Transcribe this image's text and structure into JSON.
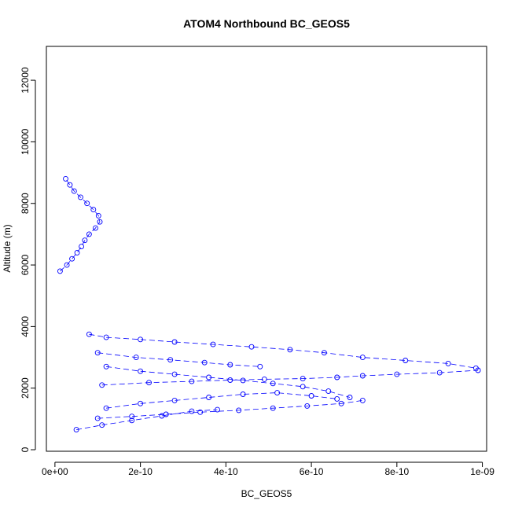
{
  "chart_data": {
    "type": "scatter",
    "title": "ATOM4 Northbound BC_GEOS5",
    "xlabel": "BC_GEOS5",
    "ylabel": "Altitude (m)",
    "xlim": [
      -2e-11,
      1.01e-09
    ],
    "ylim": [
      -50,
      13100
    ],
    "xticks": [
      0,
      2e-10,
      4e-10,
      6e-10,
      8e-10,
      1e-09
    ],
    "xtick_labels": [
      "0e+00",
      "2e-10",
      "4e-10",
      "6e-10",
      "8e-10",
      "1e-09"
    ],
    "yticks": [
      0,
      2000,
      4000,
      6000,
      8000,
      10000,
      12000
    ],
    "ytick_labels": [
      "0",
      "2000",
      "4000",
      "6000",
      "8000",
      "10000",
      "12000"
    ],
    "marker": "open-circle",
    "grid": false,
    "colors": {
      "series": "#0000ff",
      "axis": "#000000",
      "background": "#ffffff"
    },
    "series": [
      {
        "x": [
          1.2e-11,
          2.8e-11,
          4e-11,
          5.2e-11,
          6.2e-11,
          7e-11,
          8e-11,
          9.5e-11,
          1.05e-10,
          1.02e-10,
          9e-11,
          7.5e-11,
          6e-11,
          4.5e-11,
          3.5e-11,
          2.5e-11
        ],
        "y": [
          5800,
          6000,
          6200,
          6400,
          6600,
          6800,
          7000,
          7200,
          7400,
          7600,
          7800,
          8000,
          8200,
          8400,
          8600,
          8800
        ]
      },
      {
        "x": [
          8e-11,
          1.2e-10,
          2e-10,
          2.8e-10,
          3.7e-10,
          4.6e-10,
          5.5e-10,
          6.3e-10,
          7.2e-10,
          8.2e-10,
          9.2e-10,
          9.85e-10
        ],
        "y": [
          3750,
          3650,
          3580,
          3500,
          3420,
          3340,
          3250,
          3150,
          3000,
          2900,
          2800,
          2650
        ]
      },
      {
        "x": [
          1e-10,
          1.9e-10,
          2.7e-10,
          3.5e-10,
          4.1e-10,
          4.8e-10
        ],
        "y": [
          3150,
          3000,
          2920,
          2830,
          2760,
          2700
        ]
      },
      {
        "x": [
          1.1e-10,
          2.2e-10,
          3.2e-10,
          4.1e-10,
          4.9e-10,
          5.8e-10,
          6.6e-10,
          7.2e-10,
          8e-10,
          9e-10,
          9.9e-10
        ],
        "y": [
          2100,
          2180,
          2220,
          2260,
          2290,
          2310,
          2350,
          2400,
          2450,
          2500,
          2580
        ]
      },
      {
        "x": [
          1.2e-10,
          2e-10,
          2.8e-10,
          3.6e-10,
          4.4e-10,
          5.1e-10,
          5.8e-10,
          6.4e-10,
          6.9e-10
        ],
        "y": [
          2700,
          2550,
          2450,
          2350,
          2250,
          2150,
          2050,
          1900,
          1700
        ]
      },
      {
        "x": [
          1.2e-10,
          2e-10,
          2.8e-10,
          3.6e-10,
          4.4e-10,
          5.2e-10,
          6e-10,
          6.6e-10
        ],
        "y": [
          1350,
          1500,
          1600,
          1700,
          1800,
          1850,
          1750,
          1650
        ]
      },
      {
        "x": [
          1e-10,
          1.8e-10,
          2.6e-10,
          3.4e-10,
          4.3e-10,
          5.1e-10,
          5.9e-10,
          6.7e-10,
          7.2e-10
        ],
        "y": [
          1020,
          1080,
          1150,
          1220,
          1280,
          1350,
          1420,
          1500,
          1600
        ]
      },
      {
        "x": [
          5e-11,
          1.1e-10,
          1.8e-10,
          2.5e-10,
          3.2e-10,
          3.8e-10
        ],
        "y": [
          650,
          800,
          950,
          1100,
          1250,
          1300
        ]
      }
    ]
  }
}
